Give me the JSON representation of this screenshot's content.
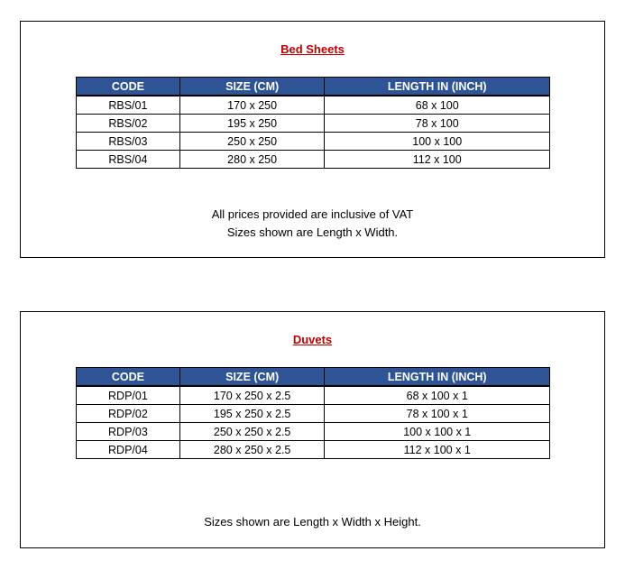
{
  "sections": [
    {
      "title": "Bed Sheets",
      "headers": [
        "CODE",
        "SIZE (CM)",
        "LENGTH IN (INCH)"
      ],
      "rows": [
        [
          "RBS/01",
          "170 x 250",
          "68 x 100"
        ],
        [
          "RBS/02",
          "195 x 250",
          "78 x 100"
        ],
        [
          "RBS/03",
          "250 x 250",
          "100 x 100"
        ],
        [
          "RBS/04",
          "280 x 250",
          "112 x 100"
        ]
      ],
      "notes": [
        "All prices provided are inclusive of VAT",
        "Sizes shown are Length x Width."
      ]
    },
    {
      "title": "Duvets",
      "headers": [
        "CODE",
        "SIZE (CM)",
        "LENGTH IN (INCH)"
      ],
      "rows": [
        [
          "RDP/01",
          "170 x 250 x 2.5",
          "68 x 100 x 1"
        ],
        [
          "RDP/02",
          "195 x 250 x 2.5",
          "78 x 100 x 1"
        ],
        [
          "RDP/03",
          "250 x 250 x 2.5",
          "100 x 100 x 1"
        ],
        [
          "RDP/04",
          "280 x 250 x 2.5",
          "112 x 100 x 1"
        ]
      ],
      "notes": [
        "Sizes shown are Length x Width x Height."
      ]
    }
  ],
  "colors": {
    "title": "#c00000",
    "header_bg": "#2f5496",
    "header_text": "#ffffff"
  }
}
